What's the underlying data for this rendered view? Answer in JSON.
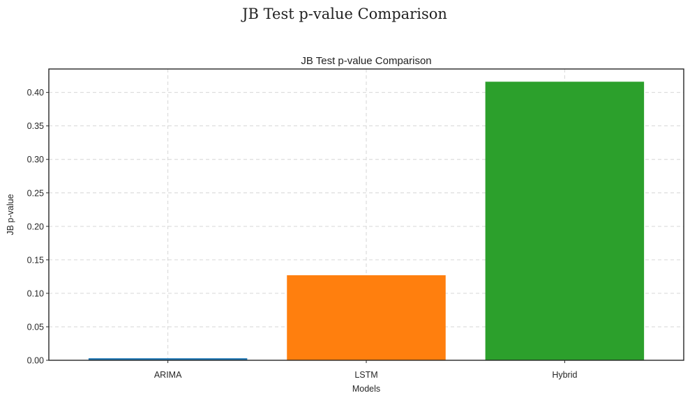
{
  "figure": {
    "suptitle": "JB Test p-value Comparison"
  },
  "chart_data": {
    "type": "bar",
    "title": "JB Test p-value Comparison",
    "xlabel": "Models",
    "ylabel": "JB p-value",
    "categories": [
      "ARIMA",
      "LSTM",
      "Hybrid"
    ],
    "values": [
      0.003,
      0.127,
      0.416
    ],
    "colors": [
      "#1f77b4",
      "#ff7f0e",
      "#2ca02c"
    ],
    "ylim": [
      0,
      0.435
    ],
    "yticks": [
      0.0,
      0.05,
      0.1,
      0.15,
      0.2,
      0.25,
      0.3,
      0.35,
      0.4
    ],
    "ytick_labels": [
      "0.00",
      "0.05",
      "0.10",
      "0.15",
      "0.20",
      "0.25",
      "0.30",
      "0.35",
      "0.40"
    ],
    "grid": true,
    "legend": "none"
  }
}
